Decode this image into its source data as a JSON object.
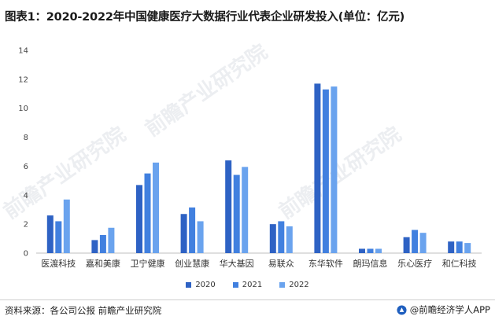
{
  "title": "图表1：2020-2022年中国健康医疗大数据行业代表企业研发投入(单位：亿元)",
  "source": "资料来源：各公司公报 前瞻产业研究院",
  "brand": "@前瞻经济学人APP",
  "watermark": "前瞻产业研究院",
  "colors": {
    "2020": "#2e62c4",
    "2021": "#4180df",
    "2022": "#6aa3ee"
  },
  "chart_data": {
    "type": "bar",
    "title": "图表1：2020-2022年中国健康医疗大数据行业代表企业研发投入(单位：亿元)",
    "xlabel": "",
    "ylabel": "",
    "ylim": [
      0,
      14
    ],
    "yticks": [
      0,
      2,
      4,
      6,
      8,
      10,
      12,
      14
    ],
    "grid": false,
    "legend": "bottom-center",
    "categories": [
      "医渡科技",
      "嘉和美康",
      "卫宁健康",
      "创业慧康",
      "华大基因",
      "易联众",
      "东华软件",
      "朗玛信息",
      "乐心医疗",
      "和仁科技"
    ],
    "series": [
      {
        "name": "2020",
        "values": [
          2.6,
          0.9,
          4.7,
          2.7,
          6.4,
          2.0,
          11.7,
          0.3,
          1.1,
          0.8
        ]
      },
      {
        "name": "2021",
        "values": [
          2.2,
          1.25,
          5.5,
          3.15,
          5.4,
          2.2,
          11.3,
          0.3,
          1.6,
          0.8
        ]
      },
      {
        "name": "2022",
        "values": [
          3.7,
          1.75,
          6.25,
          2.2,
          5.95,
          1.85,
          11.5,
          0.3,
          1.4,
          0.7
        ]
      }
    ]
  }
}
